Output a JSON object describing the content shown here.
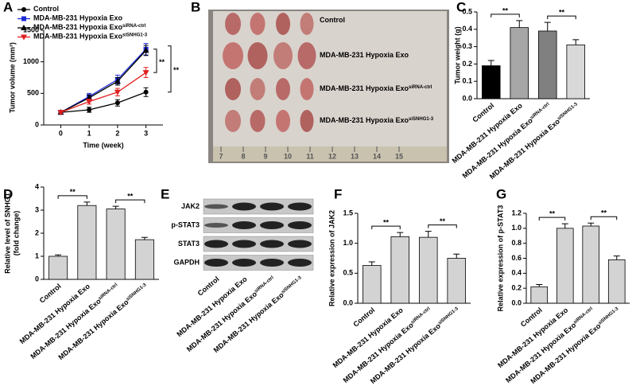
{
  "chart_data": [
    {
      "type": "line",
      "panel_label": "A",
      "ylabel": "Tumor volume (mm³)",
      "xlabel": "Time (week)",
      "x": [
        0,
        1,
        2,
        3
      ],
      "xlim": [
        -0.6,
        3.6
      ],
      "xticks": [
        0,
        1,
        2,
        3
      ],
      "ylim": [
        0,
        1500
      ],
      "yticks": [
        0,
        500,
        1000,
        1500
      ],
      "series": [
        {
          "name": "Control",
          "color": "#000000",
          "marker": "circle",
          "values": [
            200,
            240,
            350,
            520
          ],
          "errors": [
            20,
            40,
            50,
            70
          ]
        },
        {
          "name": "MDA-MB-231 Hypoxia Exo",
          "color": "#1f2bd6",
          "marker": "square",
          "values": [
            200,
            450,
            720,
            1200
          ],
          "errors": [
            20,
            50,
            70,
            90
          ]
        },
        {
          "name": "MDA-MB-231 Hypoxia Exo",
          "superscript": "siRNA-ctrl",
          "color": "#000000",
          "marker": "triangle",
          "values": [
            200,
            430,
            690,
            1180
          ],
          "errors": [
            20,
            45,
            60,
            80
          ]
        },
        {
          "name": "MDA-MB-231 Hypoxia Exo",
          "superscript": "siSNHG1-3",
          "color": "#e02020",
          "marker": "triangle-down",
          "values": [
            200,
            370,
            520,
            830
          ],
          "errors": [
            20,
            40,
            60,
            80
          ]
        }
      ],
      "annotations": [
        {
          "text": "**"
        },
        {
          "text": "**"
        }
      ]
    },
    {
      "type": "bar",
      "panel_label": "C",
      "ylabel": "Tumor weight (g)",
      "categories": [
        "Control",
        "MDA-MB-231 Hypoxia Exo",
        "MDA-MB-231 Hypoxia Exo",
        "MDA-MB-231 Hypoxia Exo"
      ],
      "category_superscripts": [
        null,
        null,
        "siRNA-ctrl",
        "siSNHG1-3"
      ],
      "values": [
        0.19,
        0.41,
        0.39,
        0.31
      ],
      "errors": [
        0.03,
        0.04,
        0.05,
        0.03
      ],
      "colors": [
        "#000000",
        "#a6a6a6",
        "#808080",
        "#d9d9d9"
      ],
      "ylim": [
        0,
        0.5
      ],
      "yticks": [
        {
          "value": 0,
          "label": "0.0"
        },
        0.1,
        0.2,
        0.3,
        0.4,
        0.5
      ],
      "annotations": [
        {
          "text": "**"
        },
        {
          "text": "**"
        }
      ]
    },
    {
      "type": "bar",
      "panel_label": "D",
      "ylabel": [
        "Relative level of SNHG1",
        "(fold change)"
      ],
      "categories": [
        "Control",
        "MDA-MB-231 Hypoxia Exo",
        "MDA-MB-231 Hypoxia Exo",
        "MDA-MB-231 Hypoxia Exo"
      ],
      "category_superscripts": [
        null,
        null,
        "siRNA-ctrl",
        "siSNHG1-3"
      ],
      "values": [
        1.0,
        3.2,
        3.05,
        1.72
      ],
      "errors": [
        0.06,
        0.15,
        0.12,
        0.1
      ],
      "color": "#d3d3d3",
      "ylim": [
        0,
        4
      ],
      "yticks": [
        0,
        1,
        2,
        3,
        4
      ],
      "annotations": [
        {
          "text": "**"
        },
        {
          "text": "**"
        }
      ]
    },
    {
      "type": "bar",
      "panel_label": "F",
      "ylabel": "Relative expression of JAK2",
      "categories": [
        "Control",
        "MDA-MB-231 Hypoxia Exo",
        "MDA-MB-231 Hypoxia Exo",
        "MDA-MB-231 Hypoxia Exo"
      ],
      "category_superscripts": [
        null,
        null,
        "siRNA-ctrl",
        "siSNHG1-3"
      ],
      "values": [
        0.63,
        1.11,
        1.1,
        0.75
      ],
      "errors": [
        0.06,
        0.07,
        0.1,
        0.07
      ],
      "color": "#d3d3d3",
      "ylim": [
        0,
        1.5
      ],
      "yticks": [
        {
          "value": 0,
          "label": "0.0"
        },
        0.5,
        {
          "value": 1,
          "label": "1.0"
        },
        1.5
      ],
      "annotations": [
        {
          "text": "**"
        },
        {
          "text": "**"
        }
      ]
    },
    {
      "type": "bar",
      "panel_label": "G",
      "ylabel": "Relative expression of p-STAT3",
      "categories": [
        "Control",
        "MDA-MB-231 Hypoxia Exo",
        "MDA-MB-231 Hypoxia Exo",
        "MDA-MB-231 Hypoxia Exo"
      ],
      "category_superscripts": [
        null,
        null,
        "siRNA-ctrl",
        "siSNHG1-3"
      ],
      "values": [
        0.22,
        1.0,
        1.03,
        0.58
      ],
      "errors": [
        0.03,
        0.06,
        0.04,
        0.05
      ],
      "color": "#d3d3d3",
      "ylim": [
        0,
        1.2
      ],
      "yticks": [
        {
          "value": 0,
          "label": "0.0"
        },
        0.2,
        0.4,
        0.6,
        0.8,
        {
          "value": 1,
          "label": "1.0"
        },
        1.2
      ],
      "annotations": [
        {
          "text": "**"
        },
        {
          "text": "**"
        }
      ]
    }
  ],
  "tumor_photo": {
    "panel_label": "B",
    "rows": [
      {
        "text": "Control"
      },
      {
        "text": "MDA-MB-231 Hypoxia Exo"
      },
      {
        "text": "MDA-MB-231 Hypoxia Exo",
        "superscript": "siRNA-ctrl"
      },
      {
        "text": "MDA-MB-231 Hypoxia Exo",
        "superscript": "siSNHG1-3"
      }
    ],
    "ruler": [
      "7",
      "8",
      "9",
      "10",
      "11",
      "12",
      "13",
      "14",
      "15"
    ]
  },
  "western_blot": {
    "panel_label": "E",
    "proteins": [
      "JAK2",
      "p-STAT3",
      "STAT3",
      "GAPDH"
    ],
    "lanes": [
      "Control",
      "MDA-MB-231 Hypoxia Exo",
      "MDA-MB-231 Hypoxia Exo",
      "MDA-MB-231 Hypoxia Exo"
    ],
    "lane_superscripts": [
      null,
      null,
      "siRNA-ctrl",
      "siSNHG1-3"
    ]
  }
}
